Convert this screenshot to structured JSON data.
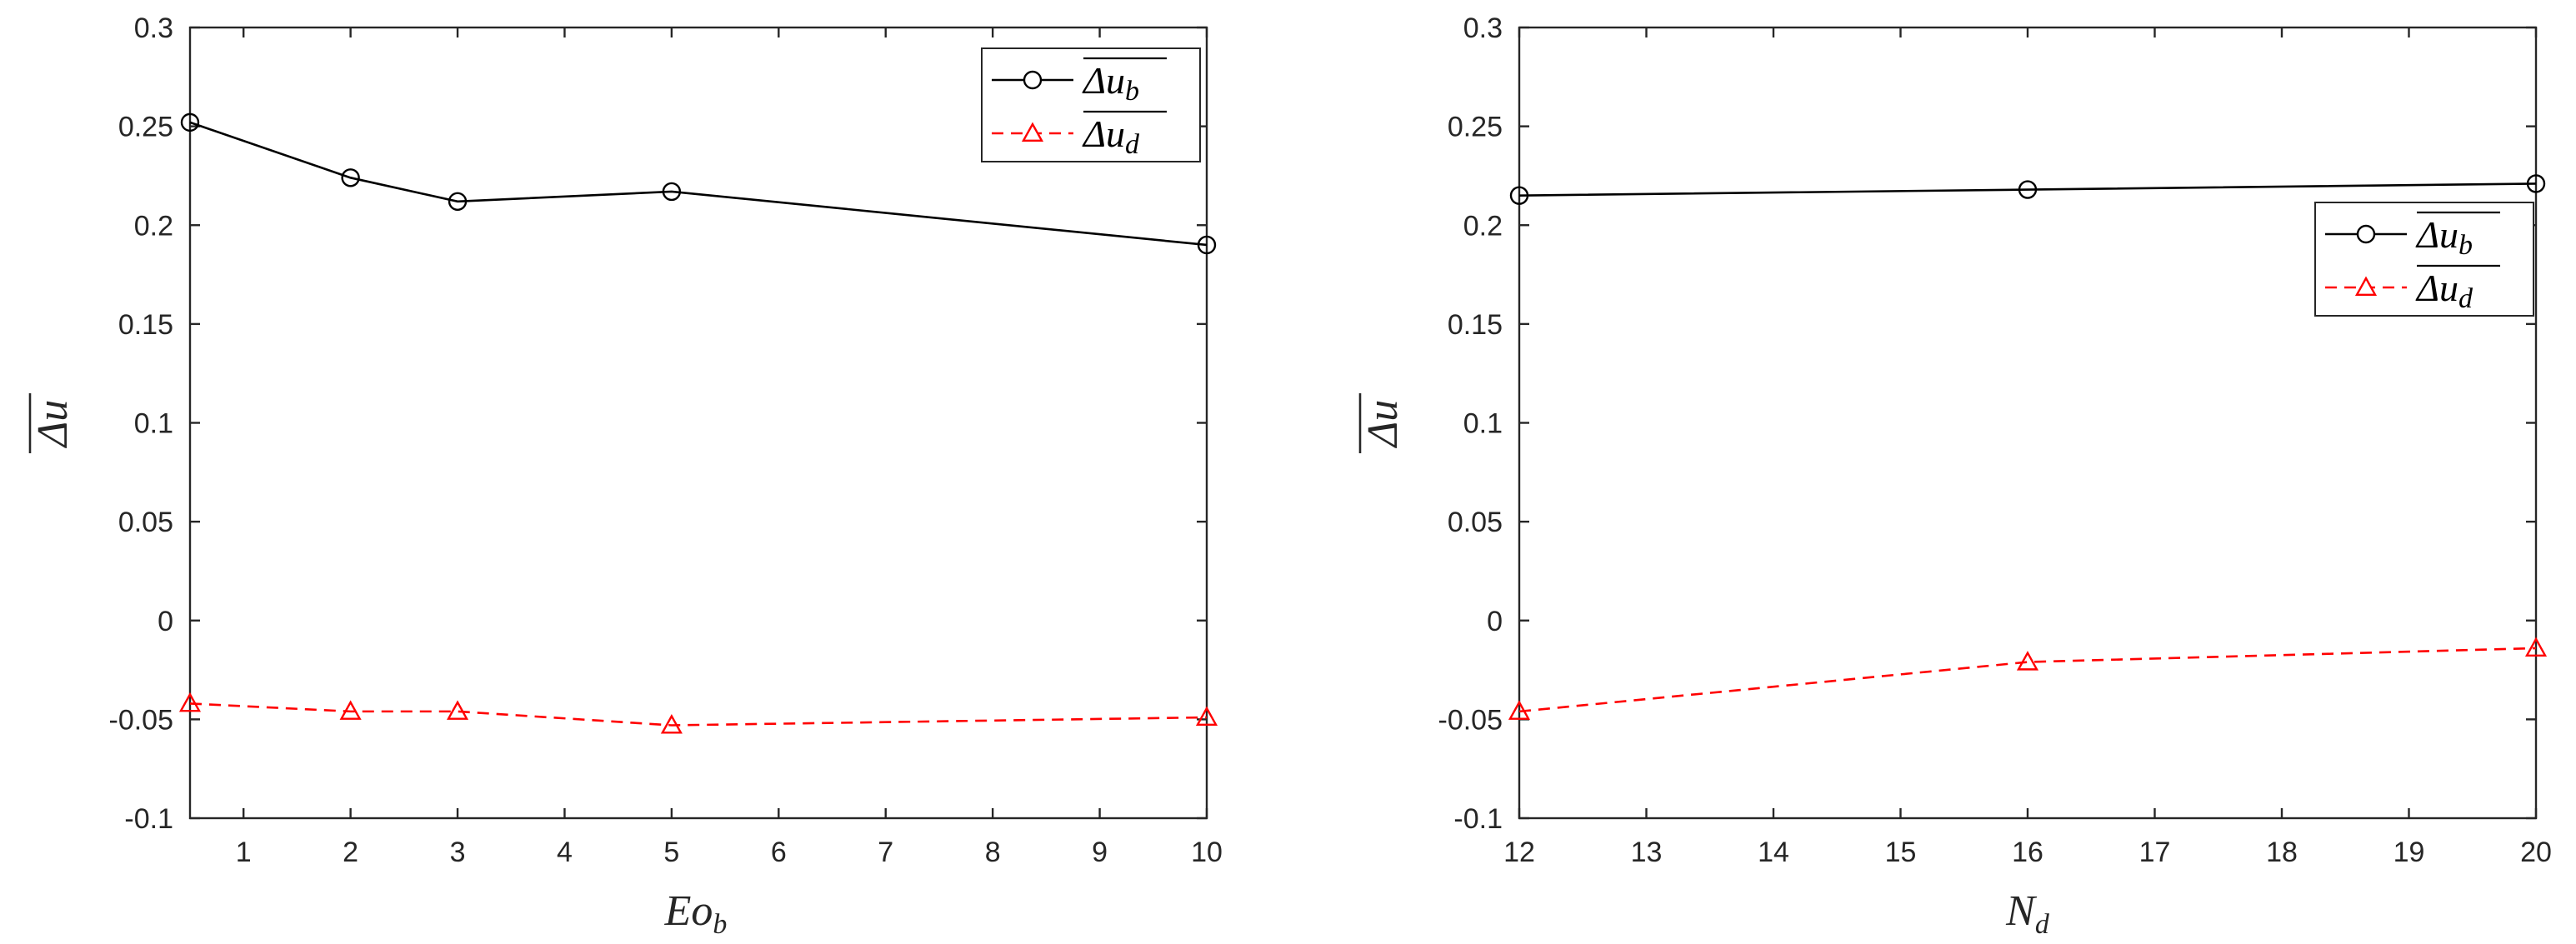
{
  "chart_data": [
    {
      "type": "line",
      "title": "",
      "xlabel": "Eo_b",
      "xlabel_main": "Eo",
      "xlabel_sub": "b",
      "ylabel": "Δu (overlined)",
      "ylabel_main": "Δu",
      "xlim": [
        0.5,
        10
      ],
      "ylim": [
        -0.1,
        0.3
      ],
      "xticks": [
        1,
        2,
        3,
        4,
        5,
        6,
        7,
        8,
        9,
        10
      ],
      "xtick_labels": [
        "1",
        "2",
        "3",
        "4",
        "5",
        "6",
        "7",
        "8",
        "9",
        "10"
      ],
      "yticks": [
        -0.1,
        -0.05,
        0,
        0.05,
        0.1,
        0.15,
        0.2,
        0.25,
        0.3
      ],
      "ytick_labels": [
        "-0.1",
        "-0.05",
        "0",
        "0.05",
        "0.1",
        "0.15",
        "0.2",
        "0.25",
        "0.3"
      ],
      "legend_position": "top-right",
      "series": [
        {
          "name": "Δu_b",
          "label_main": "Δu",
          "label_sub": "b",
          "color": "#000000",
          "dash": "solid",
          "marker": "circle",
          "x": [
            0.5,
            2,
            3,
            5,
            10
          ],
          "y": [
            0.252,
            0.224,
            0.212,
            0.217,
            0.19
          ]
        },
        {
          "name": "Δu_d",
          "label_main": "Δu",
          "label_sub": "d",
          "color": "#ff0000",
          "dash": "dashed",
          "marker": "triangle",
          "x": [
            0.5,
            2,
            3,
            5,
            10
          ],
          "y": [
            -0.042,
            -0.046,
            -0.046,
            -0.053,
            -0.049
          ]
        }
      ]
    },
    {
      "type": "line",
      "title": "",
      "xlabel": "N_d",
      "xlabel_main": "N",
      "xlabel_sub": "d",
      "ylabel": "Δu (overlined)",
      "ylabel_main": "Δu",
      "xlim": [
        12,
        20
      ],
      "ylim": [
        -0.1,
        0.3
      ],
      "xticks": [
        12,
        13,
        14,
        15,
        16,
        17,
        18,
        19,
        20
      ],
      "xtick_labels": [
        "12",
        "13",
        "14",
        "15",
        "16",
        "17",
        "18",
        "19",
        "20"
      ],
      "yticks": [
        -0.1,
        -0.05,
        0,
        0.05,
        0.1,
        0.15,
        0.2,
        0.25,
        0.3
      ],
      "ytick_labels": [
        "-0.1",
        "-0.05",
        "0",
        "0.05",
        "0.1",
        "0.15",
        "0.2",
        "0.25",
        "0.3"
      ],
      "legend_position": "upper-right",
      "series": [
        {
          "name": "Δu_b",
          "label_main": "Δu",
          "label_sub": "b",
          "color": "#000000",
          "dash": "solid",
          "marker": "circle",
          "x": [
            12,
            16,
            20
          ],
          "y": [
            0.215,
            0.218,
            0.221
          ]
        },
        {
          "name": "Δu_d",
          "label_main": "Δu",
          "label_sub": "d",
          "color": "#ff0000",
          "dash": "dashed",
          "marker": "triangle",
          "x": [
            12,
            16,
            20
          ],
          "y": [
            -0.046,
            -0.021,
            -0.014
          ]
        }
      ]
    }
  ]
}
